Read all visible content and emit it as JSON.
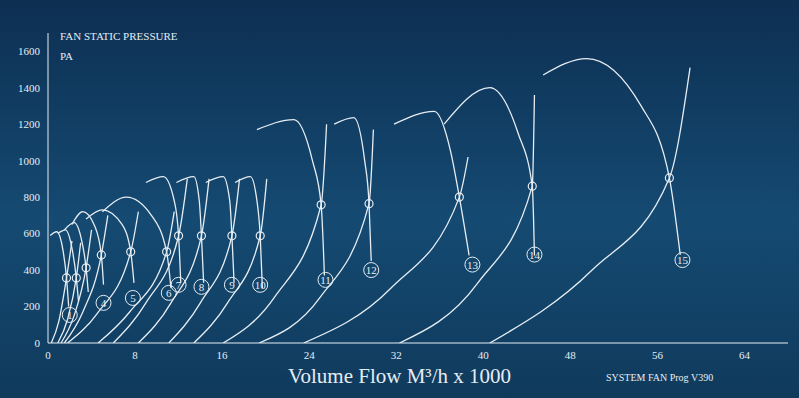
{
  "chart_data": {
    "type": "line",
    "ylabel": [
      "FAN STATIC PRESSURE",
      "PA"
    ],
    "xlabel": "Volume Flow M³/h x 1000",
    "annotation": "SYSTEM FAN Prog V390",
    "xlim": [
      0,
      68
    ],
    "xticks": [
      0,
      8,
      16,
      24,
      32,
      40,
      48,
      56,
      64
    ],
    "ylim": [
      0,
      1700
    ],
    "yticks": [
      0,
      200,
      400,
      600,
      800,
      1000,
      1200,
      1400,
      1600
    ],
    "grid": false,
    "color": "#e6edf3",
    "fans": [
      {
        "label": "1",
        "label_x": 2.0,
        "label_y": 154,
        "operating_point": {
          "x": 1.7,
          "y": 357
        },
        "fan_curve": {
          "x": [
            0.2,
            0.8,
            1.4,
            1.7,
            1.9
          ],
          "y": [
            590,
            610,
            500,
            357,
            200
          ]
        },
        "system_curve": {
          "x": [
            0.3,
            1.0,
            1.7,
            2.2
          ],
          "y": [
            0,
            120,
            357,
            560
          ]
        }
      },
      {
        "label": null,
        "label_x": null,
        "label_y": null,
        "operating_point": {
          "x": 2.6,
          "y": 357
        },
        "fan_curve": {
          "x": [
            0.9,
            1.6,
            2.2,
            2.6,
            2.8
          ],
          "y": [
            600,
            620,
            520,
            357,
            230
          ]
        },
        "system_curve": {
          "x": [
            0.9,
            1.8,
            2.6,
            3.0
          ],
          "y": [
            0,
            130,
            357,
            550
          ]
        }
      },
      {
        "label": null,
        "label_x": null,
        "label_y": null,
        "operating_point": {
          "x": 3.5,
          "y": 412
        },
        "fan_curve": {
          "x": [
            1.5,
            2.4,
            3.1,
            3.5,
            3.7
          ],
          "y": [
            620,
            660,
            560,
            412,
            280
          ]
        },
        "system_curve": {
          "x": [
            1.2,
            2.4,
            3.5,
            4.0
          ],
          "y": [
            0,
            150,
            412,
            620
          ]
        }
      },
      {
        "label": "4",
        "label_x": 5.1,
        "label_y": 220,
        "operating_point": {
          "x": 4.9,
          "y": 483
        },
        "fan_curve": {
          "x": [
            2.2,
            3.2,
            4.3,
            4.9,
            5.1
          ],
          "y": [
            650,
            720,
            640,
            483,
            320
          ]
        },
        "system_curve": {
          "x": [
            1.5,
            3.2,
            4.9,
            5.5
          ],
          "y": [
            0,
            170,
            483,
            700
          ]
        }
      },
      {
        "label": "5",
        "label_x": 7.8,
        "label_y": 247,
        "operating_point": {
          "x": 7.6,
          "y": 500
        },
        "fan_curve": {
          "x": [
            3.5,
            5.0,
            6.8,
            7.6,
            7.9
          ],
          "y": [
            680,
            730,
            650,
            500,
            330
          ]
        },
        "system_curve": {
          "x": [
            1.8,
            4.5,
            7.6,
            8.3
          ],
          "y": [
            0,
            160,
            500,
            720
          ]
        }
      },
      {
        "label": "6",
        "label_x": 11.1,
        "label_y": 275,
        "operating_point": {
          "x": 10.9,
          "y": 500
        },
        "fan_curve": {
          "x": [
            5.0,
            7.2,
            9.5,
            10.9,
            11.3
          ],
          "y": [
            720,
            800,
            700,
            500,
            300
          ]
        },
        "system_curve": {
          "x": [
            4.6,
            7.5,
            10.9,
            11.6
          ],
          "y": [
            0,
            170,
            500,
            720
          ]
        }
      },
      {
        "label": "7",
        "label_x": 12.0,
        "label_y": 319,
        "operating_point": {
          "x": 12.0,
          "y": 588
        },
        "fan_curve": {
          "x": [
            9.0,
            10.6,
            11.6,
            12.0,
            12.2
          ],
          "y": [
            880,
            912,
            780,
            588,
            330
          ]
        },
        "system_curve": {
          "x": [
            6.0,
            9.0,
            12.0,
            12.8
          ],
          "y": [
            0,
            220,
            588,
            900
          ]
        }
      },
      {
        "label": "8",
        "label_x": 14.1,
        "label_y": 308,
        "operating_point": {
          "x": 14.1,
          "y": 588
        },
        "fan_curve": {
          "x": [
            11.8,
            13.4,
            13.9,
            14.1,
            14.3
          ],
          "y": [
            880,
            912,
            780,
            588,
            330
          ]
        },
        "system_curve": {
          "x": [
            8.3,
            11.3,
            14.1,
            14.8
          ],
          "y": [
            0,
            220,
            588,
            900
          ]
        }
      },
      {
        "label": "9",
        "label_x": 16.9,
        "label_y": 319,
        "operating_point": {
          "x": 16.9,
          "y": 588
        },
        "fan_curve": {
          "x": [
            14.5,
            16.1,
            16.7,
            16.9,
            17.1
          ],
          "y": [
            880,
            912,
            780,
            588,
            330
          ]
        },
        "system_curve": {
          "x": [
            11.1,
            14.0,
            16.9,
            17.6
          ],
          "y": [
            0,
            220,
            588,
            900
          ]
        }
      },
      {
        "label": "10",
        "label_x": 19.5,
        "label_y": 319,
        "operating_point": {
          "x": 19.5,
          "y": 588
        },
        "fan_curve": {
          "x": [
            17.2,
            18.6,
            19.2,
            19.5,
            19.7
          ],
          "y": [
            880,
            912,
            780,
            588,
            300
          ]
        },
        "system_curve": {
          "x": [
            13.4,
            16.5,
            19.5,
            20.1
          ],
          "y": [
            0,
            220,
            588,
            900
          ]
        }
      },
      {
        "label": "11",
        "label_x": 25.5,
        "label_y": 346,
        "operating_point": {
          "x": 25.1,
          "y": 758
        },
        "fan_curve": {
          "x": [
            19.2,
            22.6,
            24.3,
            25.1,
            25.4
          ],
          "y": [
            1170,
            1225,
            1000,
            758,
            370
          ]
        },
        "system_curve": {
          "x": [
            16.1,
            20.8,
            25.1,
            25.6
          ],
          "y": [
            0,
            250,
            758,
            1200
          ]
        }
      },
      {
        "label": "12",
        "label_x": 29.7,
        "label_y": 400,
        "operating_point": {
          "x": 29.5,
          "y": 764
        },
        "fan_curve": {
          "x": [
            26.3,
            28.1,
            29.1,
            29.5,
            29.7
          ],
          "y": [
            1200,
            1236,
            1000,
            764,
            450
          ]
        },
        "system_curve": {
          "x": [
            19.4,
            25.0,
            29.5,
            29.9
          ],
          "y": [
            0,
            250,
            764,
            1170
          ]
        }
      },
      {
        "label": "13",
        "label_x": 39.0,
        "label_y": 430,
        "operating_point": {
          "x": 37.8,
          "y": 800
        },
        "fan_curve": {
          "x": [
            31.8,
            35.5,
            37.0,
            37.8,
            38.7
          ],
          "y": [
            1200,
            1270,
            1050,
            800,
            480
          ]
        },
        "system_curve": {
          "x": [
            23.5,
            31.5,
            37.8,
            38.6
          ],
          "y": [
            0,
            300,
            800,
            1020
          ]
        }
      },
      {
        "label": "14",
        "label_x": 44.7,
        "label_y": 485,
        "operating_point": {
          "x": 44.5,
          "y": 860
        },
        "fan_curve": {
          "x": [
            36.4,
            40.6,
            43.2,
            44.5,
            44.7
          ],
          "y": [
            1200,
            1400,
            1150,
            860,
            480
          ]
        },
        "system_curve": {
          "x": [
            32.3,
            39.5,
            44.5,
            44.7
          ],
          "y": [
            0,
            330,
            860,
            1360
          ]
        }
      },
      {
        "label": "15",
        "label_x": 58.3,
        "label_y": 455,
        "operating_point": {
          "x": 57.1,
          "y": 905
        },
        "fan_curve": {
          "x": [
            45.5,
            49.5,
            54.5,
            57.1,
            58.1
          ],
          "y": [
            1470,
            1560,
            1300,
            905,
            483
          ]
        },
        "system_curve": {
          "x": [
            40.6,
            50.0,
            57.1,
            59.0
          ],
          "y": [
            0,
            400,
            905,
            1510
          ]
        }
      }
    ]
  }
}
